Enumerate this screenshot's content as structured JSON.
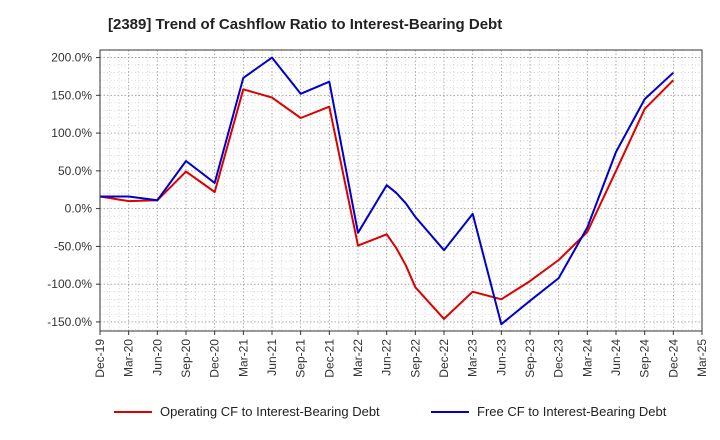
{
  "chart_data": {
    "type": "line",
    "title": "[2389]  Trend of Cashflow Ratio to Interest-Bearing Debt",
    "x_tick_labels": [
      "Dec-19",
      "Mar-20",
      "Jun-20",
      "Sep-20",
      "Dec-20",
      "Mar-21",
      "Jun-21",
      "Sep-21",
      "Dec-21",
      "Mar-22",
      "Jun-22",
      "Sep-22",
      "Dec-22",
      "Mar-23",
      "Jun-23",
      "Sep-23",
      "Dec-23",
      "Mar-24",
      "Jun-24",
      "Sep-24",
      "Dec-24",
      "Mar-25"
    ],
    "y_ticks": [
      200,
      150,
      100,
      50,
      0,
      -50,
      -100,
      -150
    ],
    "y_tick_labels": [
      "200.0%",
      "150.0%",
      "100.0%",
      "50.0%",
      "0.0%",
      "-50.0%",
      "-100.0%",
      "-150.0%"
    ],
    "ylim": [
      -162,
      210
    ],
    "grid": true,
    "legend_position": "bottom",
    "series": [
      {
        "name": "Operating CF to Interest-Bearing Debt",
        "color": "#dd0000",
        "points": [
          [
            "Dec-19",
            16
          ],
          [
            "Mar-20",
            10
          ],
          [
            "Jun-20",
            11
          ],
          [
            "Sep-20",
            49
          ],
          [
            "Dec-20",
            22
          ],
          [
            "Mar-21",
            158
          ],
          [
            "Jun-21",
            147
          ],
          [
            "Sep-21",
            120
          ],
          [
            "Dec-21",
            135
          ],
          [
            "Mar-22",
            -49
          ],
          [
            "Jun-22",
            -34
          ],
          [
            "Jul-22",
            -52
          ],
          [
            "Aug-22",
            -75
          ],
          [
            "Sep-22",
            -104
          ],
          [
            "Dec-22",
            -146
          ],
          [
            "Mar-23",
            -110
          ],
          [
            "Jun-23",
            -120
          ],
          [
            "Sep-23",
            -96
          ],
          [
            "Dec-23",
            -68
          ],
          [
            "Mar-24",
            -31
          ],
          [
            "Jun-24",
            50
          ],
          [
            "Sep-24",
            132
          ],
          [
            "Dec-24",
            170
          ]
        ]
      },
      {
        "name": "Free CF to Interest-Bearing Debt",
        "color": "#0000cc",
        "points": [
          [
            "Dec-19",
            16
          ],
          [
            "Mar-20",
            16
          ],
          [
            "Jun-20",
            11
          ],
          [
            "Sep-20",
            63
          ],
          [
            "Dec-20",
            34
          ],
          [
            "Mar-21",
            173
          ],
          [
            "Jun-21",
            200
          ],
          [
            "Sep-21",
            152
          ],
          [
            "Dec-21",
            168
          ],
          [
            "Mar-22",
            -32
          ],
          [
            "Jun-22",
            31
          ],
          [
            "Jul-22",
            21
          ],
          [
            "Aug-22",
            7
          ],
          [
            "Sep-22",
            -11
          ],
          [
            "Dec-22",
            -55
          ],
          [
            "Mar-23",
            -7
          ],
          [
            "Jun-23",
            -153
          ],
          [
            "Sep-23",
            -122
          ],
          [
            "Dec-23",
            -92
          ],
          [
            "Mar-24",
            -25
          ],
          [
            "Jun-24",
            75
          ],
          [
            "Sep-24",
            145
          ],
          [
            "Dec-24",
            180
          ]
        ]
      }
    ]
  }
}
